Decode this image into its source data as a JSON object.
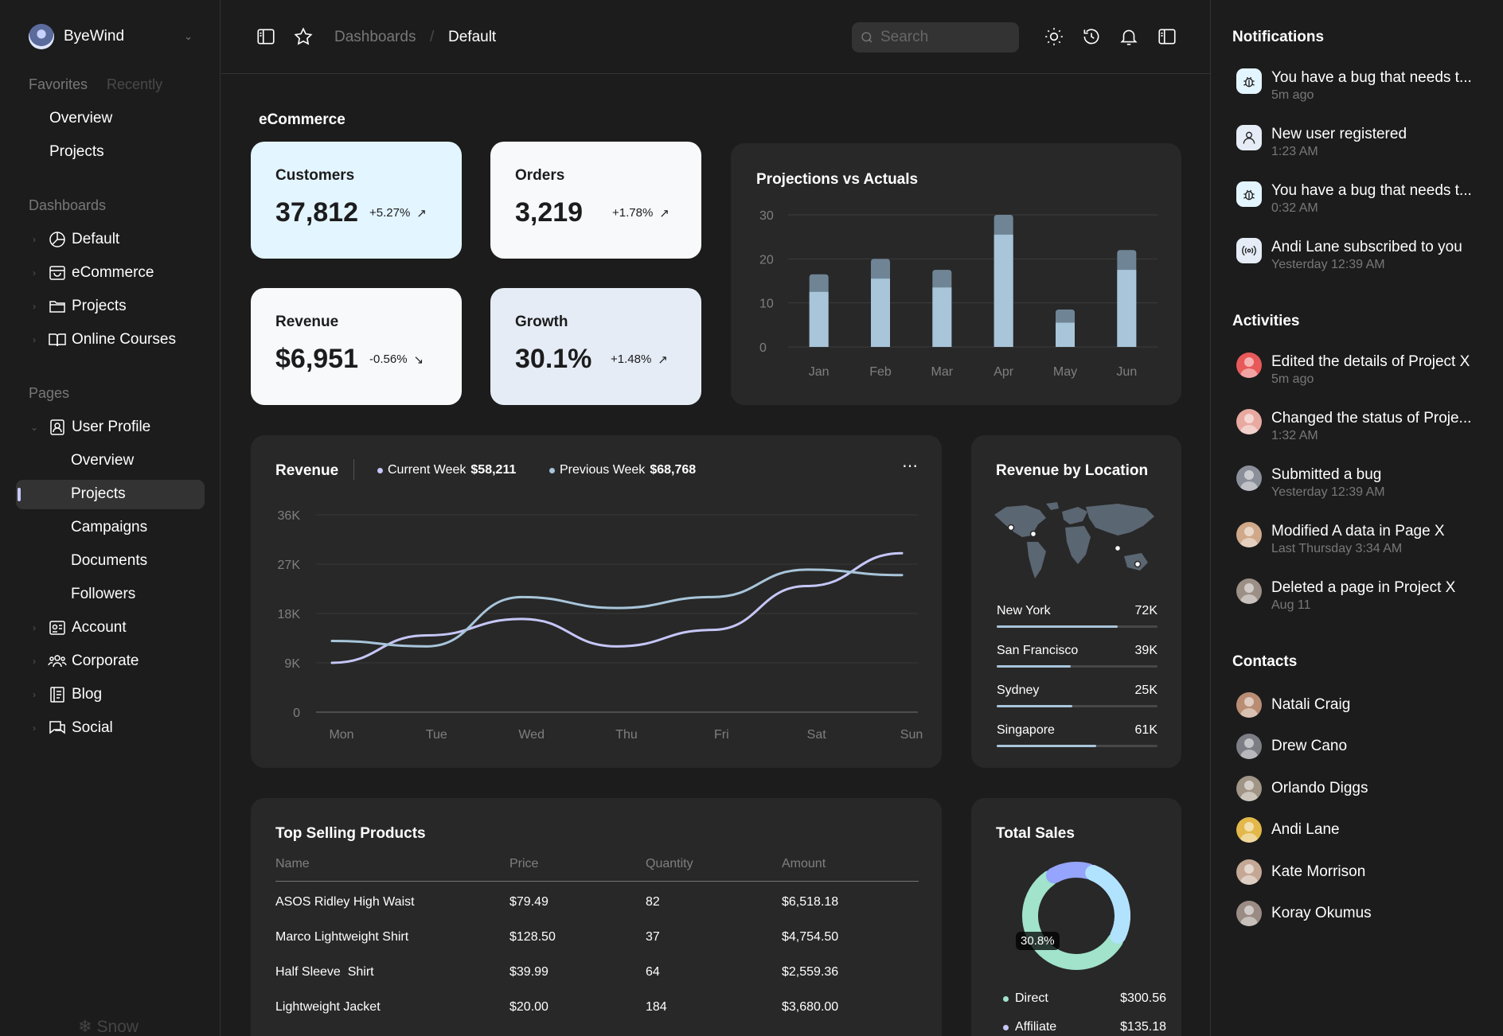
{
  "sidebar": {
    "brand": "ByeWind",
    "tabs": [
      "Favorites",
      "Recently"
    ],
    "favorites": [
      "Overview",
      "Projects"
    ],
    "dashboards_heading": "Dashboards",
    "dashboards": [
      "Default",
      "eCommerce",
      "Projects",
      "Online Courses"
    ],
    "pages_heading": "Pages",
    "user_profile": "User Profile",
    "user_profile_items": [
      "Overview",
      "Projects",
      "Campaigns",
      "Documents",
      "Followers"
    ],
    "pages": [
      "Account",
      "Corporate",
      "Blog",
      "Social"
    ],
    "footer": "Snow"
  },
  "header": {
    "breadcrumb": [
      "Dashboards",
      "/",
      "Default"
    ],
    "search_placeholder": "Search"
  },
  "main": {
    "title": "eCommerce",
    "kpis": [
      {
        "label": "Customers",
        "value": "37,812",
        "change": "+5.27%",
        "color": "#e3f5ff"
      },
      {
        "label": "Orders",
        "value": "3,219",
        "change": "+1.78%",
        "color": "#f7f9fb"
      },
      {
        "label": "Revenue",
        "value": "$6,951",
        "change": "-0.56%",
        "color": "#f7f9fb"
      },
      {
        "label": "Growth",
        "value": "30.1%",
        "change": "+1.48%",
        "color": "#e5ecf6"
      }
    ],
    "projections_title": "Projections vs Actuals",
    "revenue": {
      "title": "Revenue",
      "current_label": "Current Week",
      "current_value": "$58,211",
      "previous_label": "Previous Week",
      "previous_value": "$68,768"
    },
    "revenue_location": {
      "title": "Revenue by Location",
      "items": [
        {
          "city": "New York",
          "value": "72K",
          "fraction": 0.75
        },
        {
          "city": "San Francisco",
          "value": "39K",
          "fraction": 0.46
        },
        {
          "city": "Sydney",
          "value": "25K",
          "fraction": 0.47
        },
        {
          "city": "Singapore",
          "value": "61K",
          "fraction": 0.62
        }
      ]
    },
    "top_products": {
      "title": "Top Selling Products",
      "columns": [
        "Name",
        "Price",
        "Quantity",
        "Amount"
      ],
      "rows": [
        [
          "ASOS Ridley High Waist",
          "$79.49",
          "82",
          "$6,518.18"
        ],
        [
          "Marco Lightweight Shirt",
          "$128.50",
          "37",
          "$4,754.50"
        ],
        [
          "Half Sleeve  Shirt",
          "$39.99",
          "64",
          "$2,559.36"
        ],
        [
          "Lightweight Jacket",
          "$20.00",
          "184",
          "$3,680.00"
        ]
      ]
    },
    "total_sales": {
      "title": "Total Sales",
      "badge": "30.8%",
      "legend": [
        {
          "name": "Direct",
          "value": "$300.56",
          "color": "#a1e3cb"
        },
        {
          "name": "Affiliate",
          "value": "$135.18",
          "color": "#c6c7f8"
        }
      ]
    }
  },
  "chart_data": [
    {
      "type": "bar",
      "title": "Projections vs Actuals",
      "categories": [
        "Jan",
        "Feb",
        "Mar",
        "Apr",
        "May",
        "Jun"
      ],
      "series": [
        {
          "name": "Actuals",
          "values": [
            12.5,
            15.5,
            13.5,
            25.5,
            5.5,
            17.5
          ],
          "color": "#a8c5da"
        },
        {
          "name": "Projections",
          "values": [
            16.5,
            20,
            17.5,
            30,
            8.5,
            22
          ],
          "color": "#6f8596"
        }
      ],
      "ylim": [
        0,
        30
      ],
      "yticks": [
        "0",
        "10",
        "20",
        "30"
      ]
    },
    {
      "type": "line",
      "title": "Revenue",
      "categories": [
        "Mon",
        "Tue",
        "Wed",
        "Thu",
        "Fri",
        "Sat",
        "Sun"
      ],
      "series": [
        {
          "name": "Current Week",
          "values": [
            9,
            14,
            17,
            12,
            15,
            23,
            29
          ],
          "color": "#c6c7f8"
        },
        {
          "name": "Previous Week",
          "values": [
            13,
            12,
            21,
            19,
            21,
            26,
            25
          ],
          "color": "#a8c5da"
        }
      ],
      "ylim": [
        0,
        36
      ],
      "yticks": [
        "0",
        "9K",
        "18K",
        "27K",
        "36K"
      ]
    },
    {
      "type": "pie",
      "title": "Total Sales",
      "labels": [
        "Direct",
        "Affiliate"
      ],
      "values": [
        300.56,
        135.18
      ]
    }
  ],
  "notifications": {
    "title": "Notifications",
    "items": [
      {
        "text": "You have a bug that needs t...",
        "time": "5m ago",
        "icon": "bug-icon"
      },
      {
        "text": "New user registered",
        "time": "1:23 AM",
        "icon": "user-icon"
      },
      {
        "text": "You have a bug that needs t...",
        "time": "0:32 AM",
        "icon": "bug-icon"
      },
      {
        "text": "Andi Lane subscribed to you",
        "time": "Yesterday 12:39 AM",
        "icon": "broadcast-icon"
      }
    ]
  },
  "activities": {
    "title": "Activities",
    "items": [
      {
        "text": "Edited the details of Project X",
        "time": "5m ago",
        "color": "#e85a5a"
      },
      {
        "text": "Changed the status of Proje...",
        "time": "1:32 AM",
        "color": "#e8a9a0"
      },
      {
        "text": "Submitted a bug",
        "time": "Yesterday 12:39 AM",
        "color": "#8a8f99"
      },
      {
        "text": "Modified A data in Page X",
        "time": "Last Thursday 3:34 AM",
        "color": "#cfa98a"
      },
      {
        "text": "Deleted a page in Project X",
        "time": "Aug 11",
        "color": "#9c8f86"
      }
    ]
  },
  "contacts": {
    "title": "Contacts",
    "items": [
      {
        "name": "Natali Craig",
        "color": "#b98d73"
      },
      {
        "name": "Drew Cano",
        "color": "#7d7d85"
      },
      {
        "name": "Orlando Diggs",
        "color": "#a09586"
      },
      {
        "name": "Andi Lane",
        "color": "#e3b84a"
      },
      {
        "name": "Kate Morrison",
        "color": "#c4a895"
      },
      {
        "name": "Koray Okumus",
        "color": "#9a8c84"
      }
    ]
  }
}
